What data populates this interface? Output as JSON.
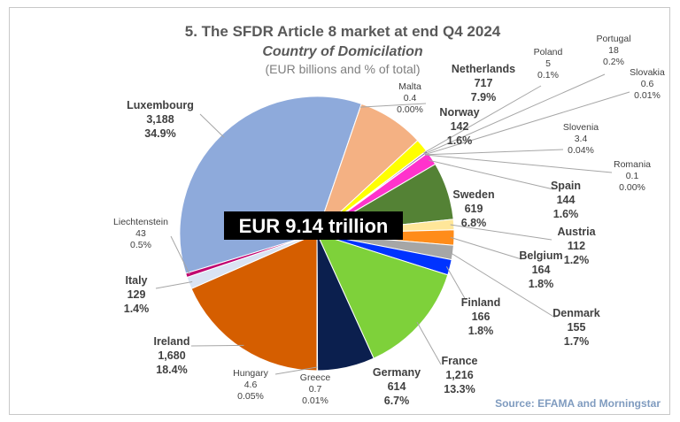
{
  "chart_data": {
    "type": "pie",
    "title": "5. The SFDR Article 8 market at end Q4 2024",
    "subtitle": "Country of Domicilation",
    "unit_note": "(EUR billions and % of total)",
    "center_label": "EUR 9.14 trillion",
    "source": "Source: EFAMA and Morningstar",
    "slices": [
      {
        "name": "Luxembourg",
        "value": 3188,
        "value_label": "3,188",
        "percent": "34.9%",
        "color": "#8eaadb"
      },
      {
        "name": "Malta",
        "value": 0.4,
        "value_label": "0.4",
        "percent": "0.00%",
        "color": "#9dc3e6"
      },
      {
        "name": "Netherlands",
        "value": 717,
        "value_label": "717",
        "percent": "7.9%",
        "color": "#f4b183"
      },
      {
        "name": "Norway",
        "value": 142,
        "value_label": "142",
        "percent": "1.6%",
        "color": "#ffff00"
      },
      {
        "name": "Poland",
        "value": 5,
        "value_label": "5",
        "percent": "0.1%",
        "color": "#a9d18e"
      },
      {
        "name": "Portugal",
        "value": 18,
        "value_label": "18",
        "percent": "0.2%",
        "color": "#7030a0"
      },
      {
        "name": "Slovakia",
        "value": 0.6,
        "value_label": "0.6",
        "percent": "0.01%",
        "color": "#c00000"
      },
      {
        "name": "Slovenia",
        "value": 3.4,
        "value_label": "3.4",
        "percent": "0.04%",
        "color": "#00b0f0"
      },
      {
        "name": "Romania",
        "value": 0.1,
        "value_label": "0.1",
        "percent": "0.00%",
        "color": "#bfbfbf"
      },
      {
        "name": "Spain",
        "value": 144,
        "value_label": "144",
        "percent": "1.6%",
        "color": "#ff33cc"
      },
      {
        "name": "Sweden",
        "value": 619,
        "value_label": "619",
        "percent": "6.8%",
        "color": "#548235"
      },
      {
        "name": "Austria",
        "value": 112,
        "value_label": "112",
        "percent": "1.2%",
        "color": "#ffe699"
      },
      {
        "name": "Belgium",
        "value": 164,
        "value_label": "164",
        "percent": "1.8%",
        "color": "#ff8c1a"
      },
      {
        "name": "Denmark",
        "value": 155,
        "value_label": "155",
        "percent": "1.7%",
        "color": "#a6a6a6"
      },
      {
        "name": "Finland",
        "value": 166,
        "value_label": "166",
        "percent": "1.8%",
        "color": "#0033ff"
      },
      {
        "name": "France",
        "value": 1216,
        "value_label": "1,216",
        "percent": "13.3%",
        "color": "#7ed13a"
      },
      {
        "name": "Germany",
        "value": 614,
        "value_label": "614",
        "percent": "6.7%",
        "color": "#0b1f4e"
      },
      {
        "name": "Greece",
        "value": 0.7,
        "value_label": "0.7",
        "percent": "0.01%",
        "color": "#00b050"
      },
      {
        "name": "Hungary",
        "value": 4.6,
        "value_label": "4.6",
        "percent": "0.05%",
        "color": "#ffc000"
      },
      {
        "name": "Ireland",
        "value": 1680,
        "value_label": "1,680",
        "percent": "18.4%",
        "color": "#d55e00"
      },
      {
        "name": "Italy",
        "value": 129,
        "value_label": "129",
        "percent": "1.4%",
        "color": "#dae3f3"
      },
      {
        "name": "Liechtenstein",
        "value": 43,
        "value_label": "43",
        "percent": "0.5%",
        "color": "#c0006e"
      }
    ]
  }
}
